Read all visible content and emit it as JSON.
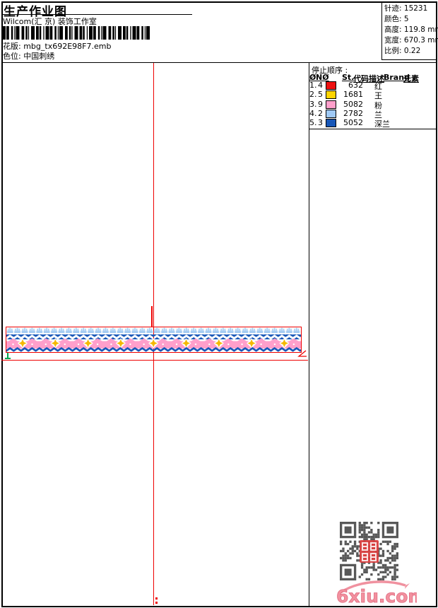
{
  "page": {
    "title": "生产作业图",
    "subtitle": "Wilcom(汇 京) 装饰工作室",
    "pattern_label": "花版:",
    "pattern_value": "mbg_tx692E98F7.emb",
    "colorway_label": "色位:",
    "colorway_value": "中国刺绣"
  },
  "stats": {
    "items": [
      {
        "label": "针迹:",
        "value": "15231"
      },
      {
        "label": "颜色:",
        "value": "5"
      },
      {
        "label": "高度:",
        "value": "119.8 mm"
      },
      {
        "label": "宽度:",
        "value": "670.3 mm"
      },
      {
        "label": "比例:",
        "value": "0.22"
      }
    ]
  },
  "stop_sequence": {
    "title": "停止顺序 :",
    "columns": [
      "Ø",
      "NØ",
      "St.",
      "代码",
      "描述",
      "Brand",
      "元素"
    ],
    "rows": [
      {
        "idx": "1.",
        "needle": "4",
        "color": "#ee1111",
        "st": "632",
        "code": "",
        "desc": "红",
        "brand": "",
        "element": ""
      },
      {
        "idx": "2.",
        "needle": "5",
        "color": "#ffd400",
        "st": "1681",
        "code": "",
        "desc": "王",
        "brand": "",
        "element": ""
      },
      {
        "idx": "3.",
        "needle": "9",
        "color": "#ff9fcb",
        "st": "5082",
        "code": "",
        "desc": "粉",
        "brand": "",
        "element": ""
      },
      {
        "idx": "4.",
        "needle": "2",
        "color": "#9fc9f5",
        "st": "2782",
        "code": "",
        "desc": "兰",
        "brand": "",
        "element": ""
      },
      {
        "idx": "5.",
        "needle": "3",
        "color": "#1757b8",
        "st": "5052",
        "code": "",
        "desc": "深兰",
        "brand": "",
        "element": ""
      }
    ]
  },
  "watermark": {
    "site": "6xiu.com"
  },
  "design": {
    "colors": {
      "pink": "#ff9fcb",
      "light_blue": "#a5ccf2",
      "dark_blue": "#1757b8",
      "yellow": "#f5b800",
      "crosshair_red": "#ee0000",
      "marker_green": "#00a651",
      "watermark_pink": "#f0919f",
      "qr_grey": "#585858",
      "seal_red": "#d84040"
    }
  }
}
